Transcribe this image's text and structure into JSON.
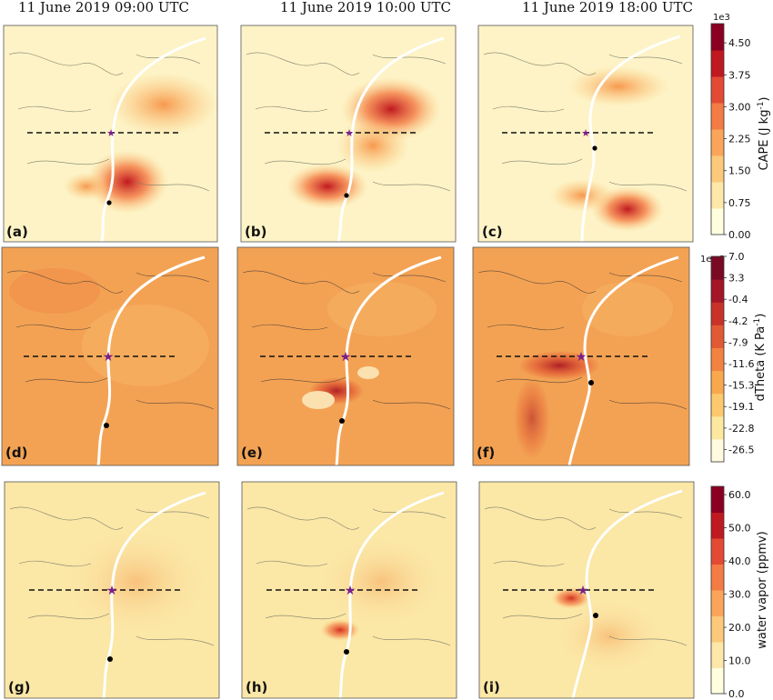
{
  "titles": [
    "11 June 2019 09:00 UTC",
    "11 June 2019 10:00 UTC",
    "11 June 2019 18:00 UTC"
  ],
  "rows": [
    {
      "field": "cape",
      "panel_labels": [
        "(a)",
        "(b)",
        "(c)"
      ],
      "colorbar": {
        "exponent": "1e3",
        "label_main": "CAPE (J kg",
        "label_sup": "-1",
        "label_end": ")",
        "ticks": [
          "4.50",
          "3.75",
          "3.00",
          "2.25",
          "1.50",
          "0.75",
          "0.00"
        ],
        "colors": [
          "#ffffe0",
          "#fde7a9",
          "#fcc97a",
          "#fba55a",
          "#f47b43",
          "#e34a33",
          "#c0191f",
          "#8b0022"
        ]
      }
    },
    {
      "field": "dtheta",
      "panel_labels": [
        "(d)",
        "(e)",
        "(f)"
      ],
      "colorbar": {
        "exponent": "1e−3",
        "label_main": "dTheta (K Pa",
        "label_sup": "-1",
        "label_end": ")",
        "ticks": [
          "7.0",
          "3.3",
          "-0.4",
          "-4.2",
          "-7.9",
          "-11.6",
          "-15.3",
          "-19.1",
          "-22.8",
          "-26.5"
        ],
        "colors": [
          "#fffbe0",
          "#fde8a0",
          "#fcc96e",
          "#f9a84e",
          "#f28240",
          "#e25a33",
          "#c83229",
          "#a31527",
          "#7a0a24"
        ]
      }
    },
    {
      "field": "water_vapor",
      "panel_labels": [
        "(g)",
        "(h)",
        "(i)"
      ],
      "colorbar": {
        "exponent": "",
        "label_main": "water vapor (ppmv)",
        "label_sup": "",
        "label_end": "",
        "ticks": [
          "60.0",
          "50.0",
          "40.0",
          "30.0",
          "20.0",
          "10.0",
          "0.0"
        ],
        "colors": [
          "#ffffe0",
          "#fde7a9",
          "#fcc97a",
          "#fba55a",
          "#f47b43",
          "#e34a33",
          "#c0191f",
          "#8b0022"
        ]
      }
    }
  ],
  "colors": {
    "trajectory": "#ffffff",
    "star": "#7a1f8a",
    "dashed_line": "#111111",
    "point": "#000000",
    "background_cape": "#fdf3c6",
    "background_dtheta": "#f3a253",
    "background_wv": "#fbe7a6"
  }
}
